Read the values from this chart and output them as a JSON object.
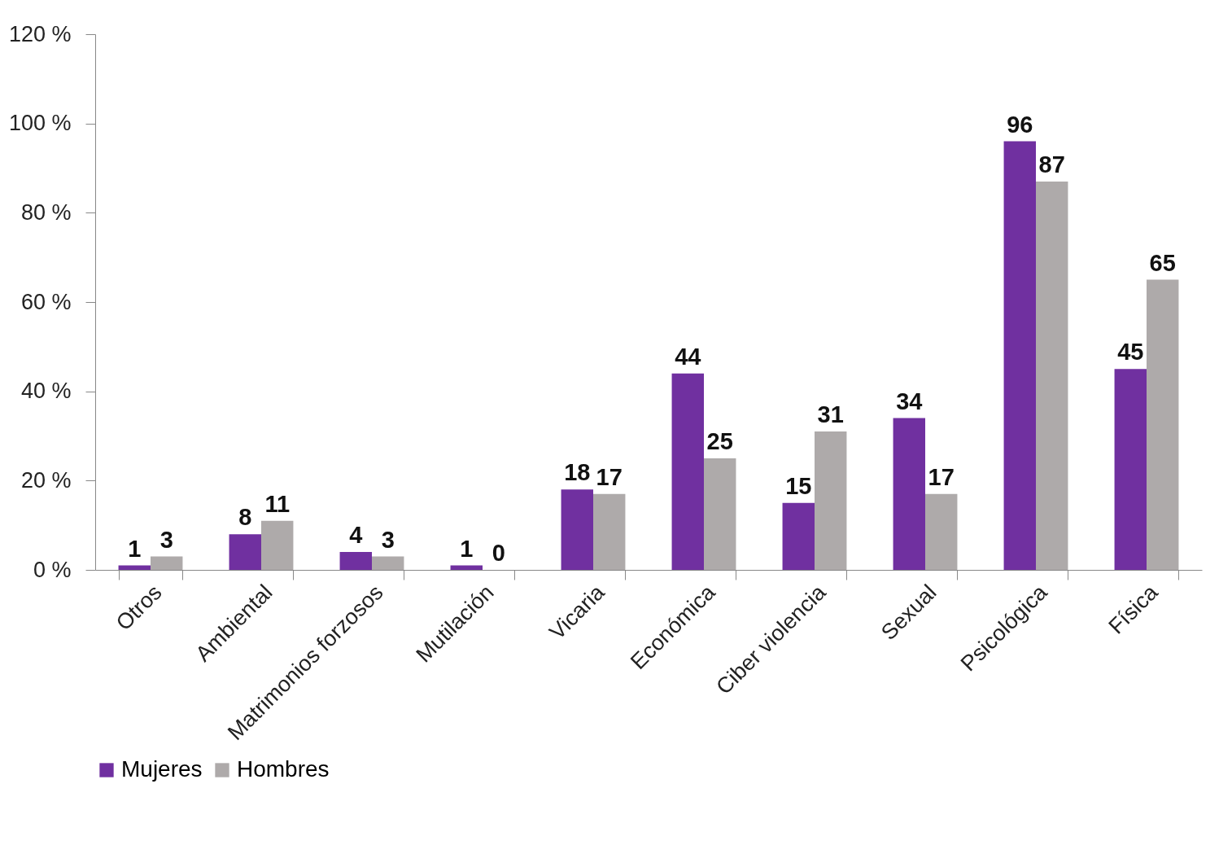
{
  "chart_data": {
    "type": "bar",
    "categories": [
      "Otros",
      "Ambiental",
      "Matrimonios forzosos",
      "Mutilación",
      "Vicaria",
      "Económica",
      "Ciber violencia",
      "Sexual",
      "Psicológica",
      "Física"
    ],
    "series": [
      {
        "name": "Mujeres",
        "color": "#7030a0",
        "values": [
          1,
          8,
          4,
          1,
          18,
          44,
          15,
          34,
          96,
          45
        ]
      },
      {
        "name": "Hombres",
        "color": "#aeaaaa",
        "values": [
          3,
          11,
          3,
          0,
          17,
          25,
          31,
          17,
          87,
          65
        ]
      }
    ],
    "ylim": [
      0,
      120
    ],
    "yticks": [
      {
        "value": 0,
        "label": "0 %"
      },
      {
        "value": 20,
        "label": "20 %"
      },
      {
        "value": 40,
        "label": "40 %"
      },
      {
        "value": 60,
        "label": "60 %"
      },
      {
        "value": 80,
        "label": "80 %"
      },
      {
        "value": 100,
        "label": "100 %"
      },
      {
        "value": 120,
        "label": "120 %"
      }
    ],
    "data_labels": true,
    "grid": false,
    "legend": "bottom"
  }
}
